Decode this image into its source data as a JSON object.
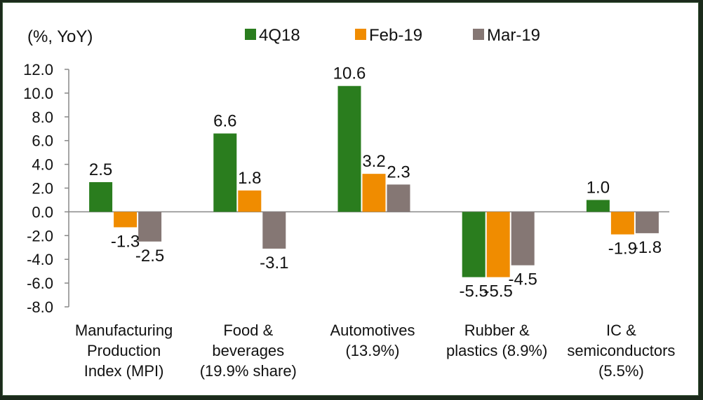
{
  "chart_data": {
    "type": "bar",
    "unit_label": "(%, YoY)",
    "categories": [
      [
        "Manufacturing",
        "Production",
        "Index (MPI)"
      ],
      [
        "Food &",
        "beverages",
        "(19.9% share)"
      ],
      [
        "Automotives",
        "(13.9%)"
      ],
      [
        "Rubber &",
        "plastics (8.9%)"
      ],
      [
        "IC &",
        "semiconductors",
        "(5.5%)"
      ]
    ],
    "series": [
      {
        "name": "4Q18",
        "color": "#2a7d1e",
        "values": [
          2.5,
          6.6,
          10.6,
          -5.5,
          1.0
        ]
      },
      {
        "name": "Feb-19",
        "color": "#f08c00",
        "values": [
          -1.3,
          1.8,
          3.2,
          -5.5,
          -1.9
        ]
      },
      {
        "name": "Mar-19",
        "color": "#857774",
        "values": [
          -2.5,
          -3.1,
          2.3,
          -4.5,
          -1.8
        ]
      }
    ],
    "yticks": [
      "12.0",
      "10.0",
      "8.0",
      "6.0",
      "4.0",
      "2.0",
      "0.0",
      "-2.0",
      "-4.0",
      "-6.0",
      "-8.0"
    ],
    "ylim": [
      -8,
      12
    ],
    "legend_position": "top",
    "grid": false
  }
}
